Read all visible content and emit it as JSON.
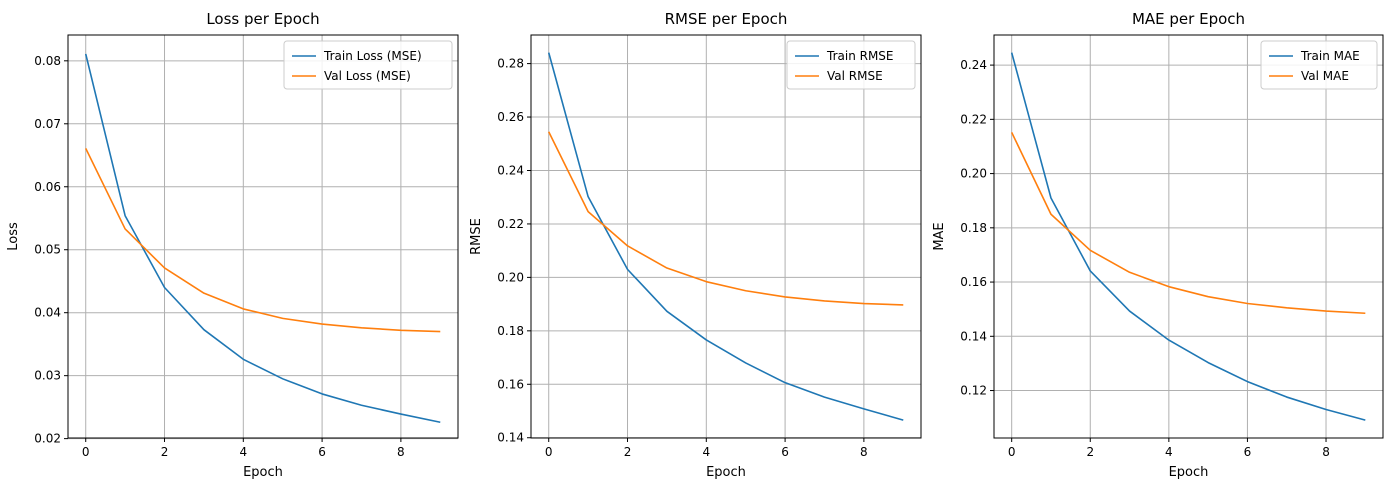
{
  "colors": {
    "train": "#1f77b4",
    "val": "#ff7f0e",
    "grid": "#b0b0b0"
  },
  "chart_data": [
    {
      "type": "line",
      "title": "Loss per Epoch",
      "xlabel": "Epoch",
      "ylabel": "Loss",
      "x": [
        0,
        1,
        2,
        3,
        4,
        5,
        6,
        7,
        8,
        9
      ],
      "xlim": [
        -0.45,
        9.45
      ],
      "ylim": [
        0.0201,
        0.0841
      ],
      "xticks": [
        0,
        2,
        4,
        6,
        8
      ],
      "yticks": [
        0.02,
        0.03,
        0.04,
        0.05,
        0.06,
        0.07,
        0.08
      ],
      "ytick_labels": [
        "0.02",
        "0.03",
        "0.04",
        "0.05",
        "0.06",
        "0.07",
        "0.08"
      ],
      "grid": true,
      "legend": "upper right",
      "series": [
        {
          "name": "Train Loss (MSE)",
          "color_key": "train",
          "values": [
            0.0811,
            0.0554,
            0.044,
            0.0373,
            0.0326,
            0.0295,
            0.0271,
            0.0253,
            0.0239,
            0.0226
          ]
        },
        {
          "name": "Val Loss (MSE)",
          "color_key": "val",
          "values": [
            0.0661,
            0.0533,
            0.0471,
            0.0431,
            0.0406,
            0.0391,
            0.0382,
            0.0376,
            0.0372,
            0.037
          ]
        }
      ]
    },
    {
      "type": "line",
      "title": "RMSE per Epoch",
      "xlabel": "Epoch",
      "ylabel": "RMSE",
      "x": [
        0,
        1,
        2,
        3,
        4,
        5,
        6,
        7,
        8,
        9
      ],
      "xlim": [
        -0.45,
        9.45
      ],
      "ylim": [
        0.1399,
        0.2907
      ],
      "xticks": [
        0,
        2,
        4,
        6,
        8
      ],
      "yticks": [
        0.14,
        0.16,
        0.18,
        0.2,
        0.22,
        0.24,
        0.26,
        0.28
      ],
      "ytick_labels": [
        "0.14",
        "0.16",
        "0.18",
        "0.20",
        "0.22",
        "0.24",
        "0.26",
        "0.28"
      ],
      "grid": true,
      "legend": "upper right",
      "series": [
        {
          "name": "Train RMSE",
          "color_key": "train",
          "values": [
            0.2841,
            0.2302,
            0.203,
            0.1873,
            0.1766,
            0.168,
            0.1606,
            0.1552,
            0.1508,
            0.1466
          ]
        },
        {
          "name": "Val RMSE",
          "color_key": "val",
          "values": [
            0.2545,
            0.2246,
            0.2118,
            0.2035,
            0.1984,
            0.195,
            0.1927,
            0.1912,
            0.1902,
            0.1897
          ]
        }
      ]
    },
    {
      "type": "line",
      "title": "MAE per Epoch",
      "xlabel": "Epoch",
      "ylabel": "MAE",
      "x": [
        0,
        1,
        2,
        3,
        4,
        5,
        6,
        7,
        8,
        9
      ],
      "xlim": [
        -0.45,
        9.45
      ],
      "ylim": [
        0.1025,
        0.2511
      ],
      "xticks": [
        0,
        2,
        4,
        6,
        8
      ],
      "yticks": [
        0.12,
        0.14,
        0.16,
        0.18,
        0.2,
        0.22,
        0.24
      ],
      "ytick_labels": [
        "0.12",
        "0.14",
        "0.16",
        "0.18",
        "0.20",
        "0.22",
        "0.24"
      ],
      "grid": true,
      "legend": "upper right",
      "series": [
        {
          "name": "Train MAE",
          "color_key": "train",
          "values": [
            0.2446,
            0.191,
            0.1641,
            0.1493,
            0.1386,
            0.1303,
            0.1233,
            0.1176,
            0.113,
            0.1091
          ]
        },
        {
          "name": "Val MAE",
          "color_key": "val",
          "values": [
            0.2152,
            0.185,
            0.1717,
            0.1636,
            0.1583,
            0.1546,
            0.1521,
            0.1505,
            0.1493,
            0.1485
          ]
        }
      ]
    }
  ]
}
